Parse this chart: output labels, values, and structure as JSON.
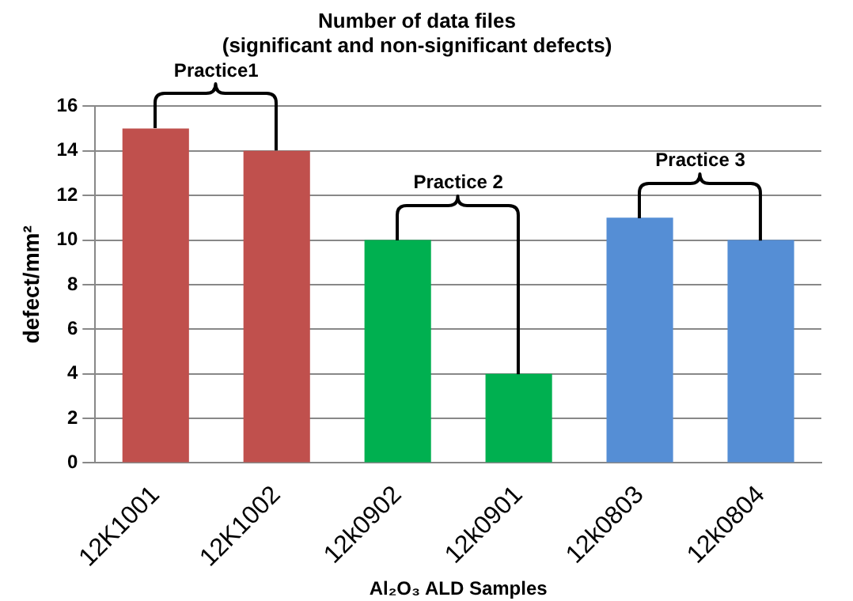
{
  "chart_data": {
    "type": "bar",
    "title": "Number of data files",
    "subtitle": "(significant and non-significant defects)",
    "xlabel": "Al₂O₃ ALD Samples",
    "ylabel": "defect/mm²",
    "categories": [
      "12K1001",
      "12K1002",
      "12k0902",
      "12k0901",
      "12k0803",
      "12k0804"
    ],
    "values": [
      15,
      14,
      10,
      4,
      11,
      10
    ],
    "colors": [
      "#c0504d",
      "#c0504d",
      "#00b050",
      "#00b050",
      "#558ed5",
      "#558ed5"
    ],
    "ylim": [
      0,
      16
    ],
    "yticks": [
      0,
      2,
      4,
      6,
      8,
      10,
      12,
      14,
      16
    ],
    "grid": "y",
    "legend": false,
    "annotations": [
      "Practice1",
      "Practice 2",
      "Practice 3"
    ]
  }
}
